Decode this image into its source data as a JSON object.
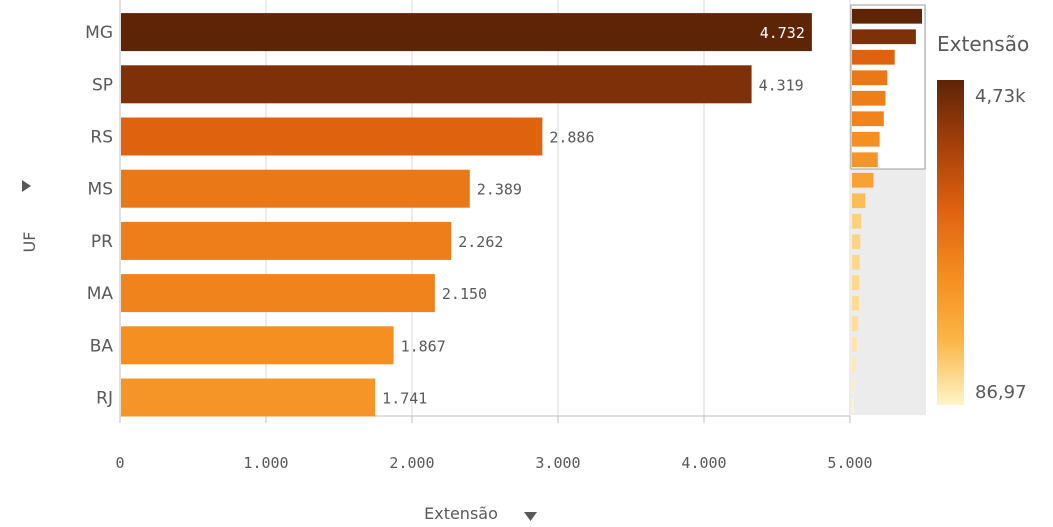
{
  "chart_data": {
    "type": "bar",
    "orientation": "horizontal",
    "categories": [
      "MG",
      "SP",
      "RS",
      "MS",
      "PR",
      "MA",
      "BA",
      "RJ"
    ],
    "values": [
      4732,
      4319,
      2886,
      2389,
      2262,
      2150,
      1867,
      1741
    ],
    "value_labels": [
      "4.732",
      "4.319",
      "2.886",
      "2.389",
      "2.262",
      "2.150",
      "1.867",
      "1.741"
    ],
    "xlabel": "Extensão",
    "ylabel": "UF",
    "xlim": [
      0,
      5000
    ],
    "xticks": [
      0,
      1000,
      2000,
      3000,
      4000,
      5000
    ],
    "xtick_labels": [
      "0",
      "1.000",
      "2.000",
      "3.000",
      "4.000",
      "5.000"
    ],
    "grid": "vertical",
    "legend": {
      "title": "Extensão",
      "max_label": "4,73k",
      "min_label": "86,97",
      "max_value": 4732,
      "min_value": 86.97,
      "colors": [
        "#fff5c8",
        "#fbb545",
        "#f58c1f",
        "#e0620f",
        "#a5400a",
        "#5e2406"
      ],
      "placement": "right"
    },
    "minimap_values": [
      4732,
      4319,
      2886,
      2389,
      2262,
      2150,
      1867,
      1741,
      1450,
      900,
      620,
      560,
      520,
      500,
      470,
      420,
      330,
      250,
      150,
      87
    ],
    "minimap_visible_count": 8
  },
  "icons": {
    "ylabel_expand": "triangle-right-icon",
    "xlabel_sort": "triangle-down-icon"
  },
  "colors": {
    "grid": "#d9d9d9",
    "axis": "#bfbfbf",
    "minimap_bg": "#ececec",
    "text": "#595959"
  }
}
